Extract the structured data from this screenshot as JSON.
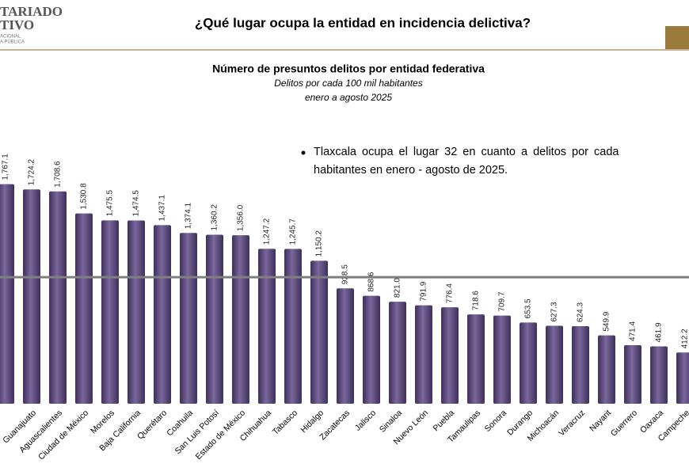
{
  "header": {
    "logo_lines": [
      "TARIADO",
      "TIVO",
      "ACIONAL",
      "A PÚBLICA"
    ],
    "title": "¿Qué lugar ocupa la entidad en incidencia delictiva?"
  },
  "chart_data": {
    "type": "bar",
    "title": "Número de presuntos delitos por entidad federativa",
    "subtitle": [
      "Delitos por cada 100 mil habitantes",
      "enero a agosto 2025"
    ],
    "annotation": [
      "Tlaxcala ocupa el lugar 32 en cuanto a delitos por cada",
      "habitantes en enero - agosto de 2025."
    ],
    "categories": [
      null,
      "Guanajuato",
      "Aguascalientes",
      "Ciudad de México",
      "Morelos",
      "Baja California",
      "Querétaro",
      "Coahuila",
      "San Luis Potosí",
      "Estado de México",
      "Chihuahua",
      "Tabasco",
      "Hidalgo",
      "Zacatecas",
      "Jalisco",
      "Sinaloa",
      "Nuevo León",
      "Puebla",
      "Tamaulipas",
      "Sonora",
      "Durango",
      "Michoacán",
      "Veracruz",
      "Nayarit",
      "Guerrero",
      "Oaxaca",
      "Campeche"
    ],
    "values": [
      1767.1,
      1724.2,
      1708.6,
      1530.8,
      1475.5,
      1474.5,
      1437.1,
      1374.1,
      1360.2,
      1356.0,
      1247.2,
      1245.7,
      1150.2,
      928.5,
      868.6,
      821.0,
      791.9,
      776.4,
      718.6,
      709.7,
      653.5,
      627.3,
      624.3,
      549.9,
      471.4,
      461.9,
      412.2
    ],
    "value_labels": [
      "1,767.1",
      "1,724.2",
      "1,708.6",
      "1,530.8",
      "1,475.5",
      "1,474.5",
      "1,437.1",
      "1,374.1",
      "1,360.2",
      "1,356.0",
      "1,247.2",
      "1,245.7",
      "1,150.2",
      "928.5",
      "868.6",
      "821.0",
      "791.9",
      "776.4",
      "718.6",
      "709.7",
      "653.5",
      "627.3",
      "624.3",
      "549.9",
      "471.4",
      "461.9",
      "412.2"
    ],
    "average_line": 1018,
    "color": "#5f4b82",
    "ylim": [
      0,
      1800
    ]
  }
}
